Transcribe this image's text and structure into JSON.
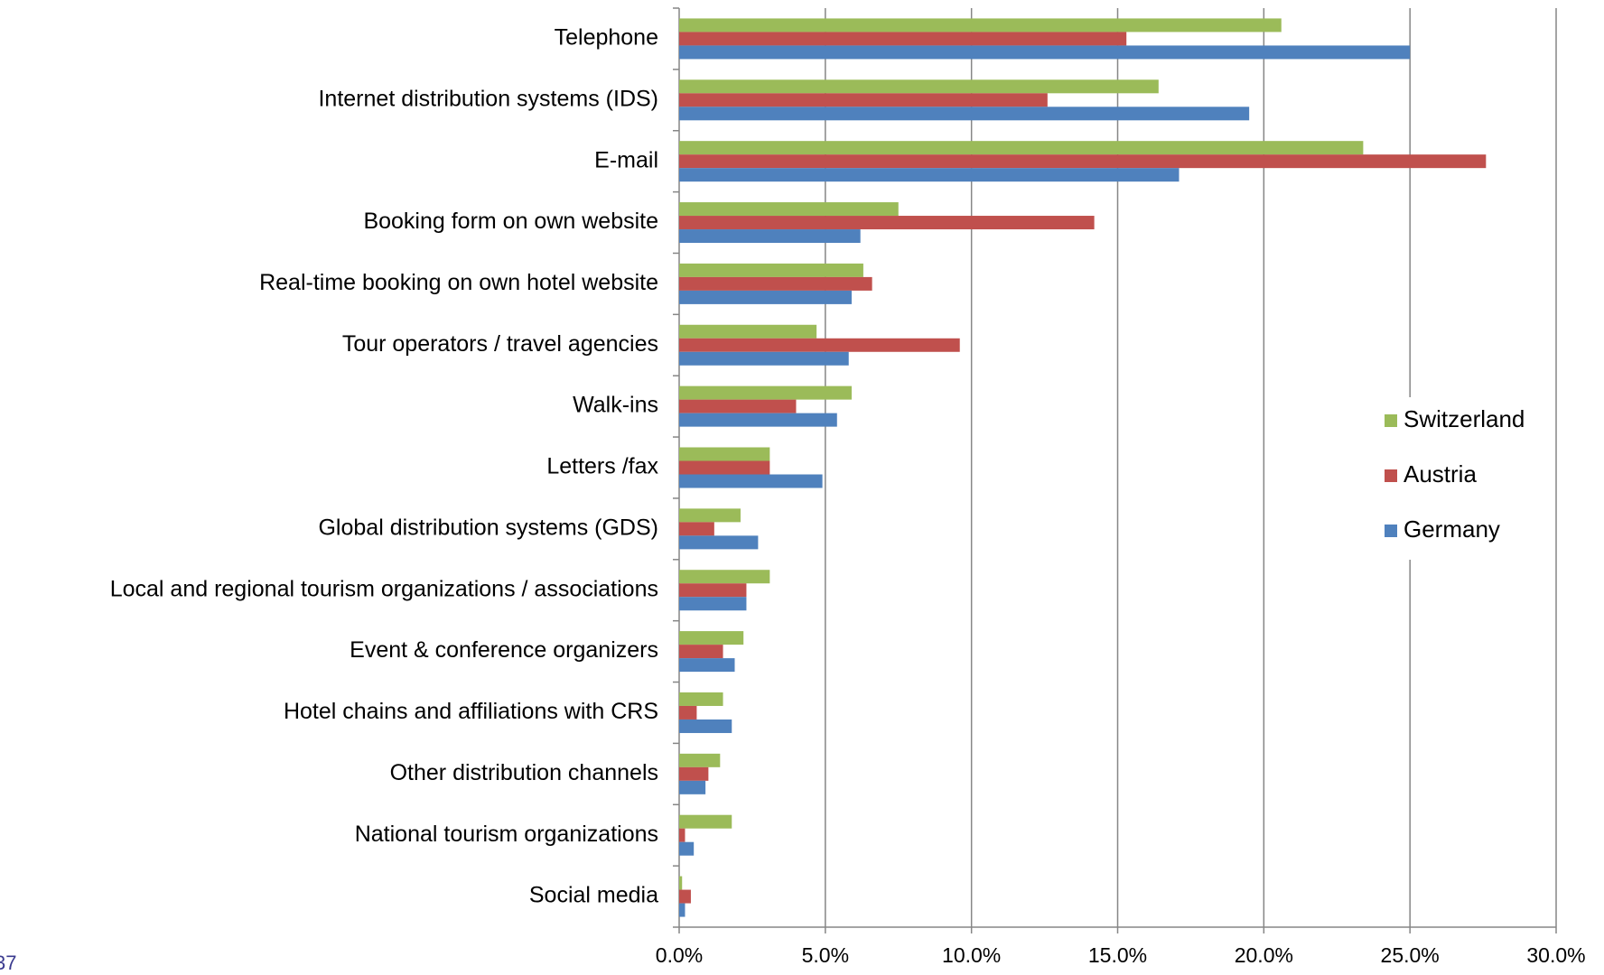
{
  "chart_data": {
    "type": "bar",
    "orientation": "horizontal",
    "categories": [
      "Telephone",
      "Internet distribution systems (IDS)",
      "E-mail",
      "Booking form on own website",
      "Real-time booking on own hotel website",
      "Tour operators / travel agencies",
      "Walk-ins",
      "Letters /fax",
      "Global distribution systems (GDS)",
      "Local and regional tourism organizations / associations",
      "Event & conference organizers",
      "Hotel chains and affiliations with CRS",
      "Other distribution channels",
      "National tourism organizations",
      "Social media"
    ],
    "series": [
      {
        "name": "Switzerland",
        "color": "#9bbb59",
        "values": [
          20.6,
          16.4,
          23.4,
          7.5,
          6.3,
          4.7,
          5.9,
          3.1,
          2.1,
          3.1,
          2.2,
          1.5,
          1.4,
          1.8,
          0.1
        ]
      },
      {
        "name": "Austria",
        "color": "#c0504d",
        "values": [
          15.3,
          12.6,
          27.6,
          14.2,
          6.6,
          9.6,
          4.0,
          3.1,
          1.2,
          2.3,
          1.5,
          0.6,
          1.0,
          0.2,
          0.4
        ]
      },
      {
        "name": "Germany",
        "color": "#4f81bd",
        "values": [
          25.0,
          19.5,
          17.1,
          6.2,
          5.9,
          5.8,
          5.4,
          4.9,
          2.7,
          2.3,
          1.9,
          1.8,
          0.9,
          0.5,
          0.2
        ]
      }
    ],
    "xlim": [
      0,
      30
    ],
    "xticks": [
      {
        "value": 0,
        "label": "0.0%"
      },
      {
        "value": 5,
        "label": "5.0%"
      },
      {
        "value": 10,
        "label": "10.0%"
      },
      {
        "value": 15,
        "label": "15.0%"
      },
      {
        "value": 20,
        "label": "20.0%"
      },
      {
        "value": 25,
        "label": "25.0%"
      },
      {
        "value": 30,
        "label": "30.0%"
      }
    ],
    "grid": true,
    "legend": "right",
    "page_number": "37"
  }
}
